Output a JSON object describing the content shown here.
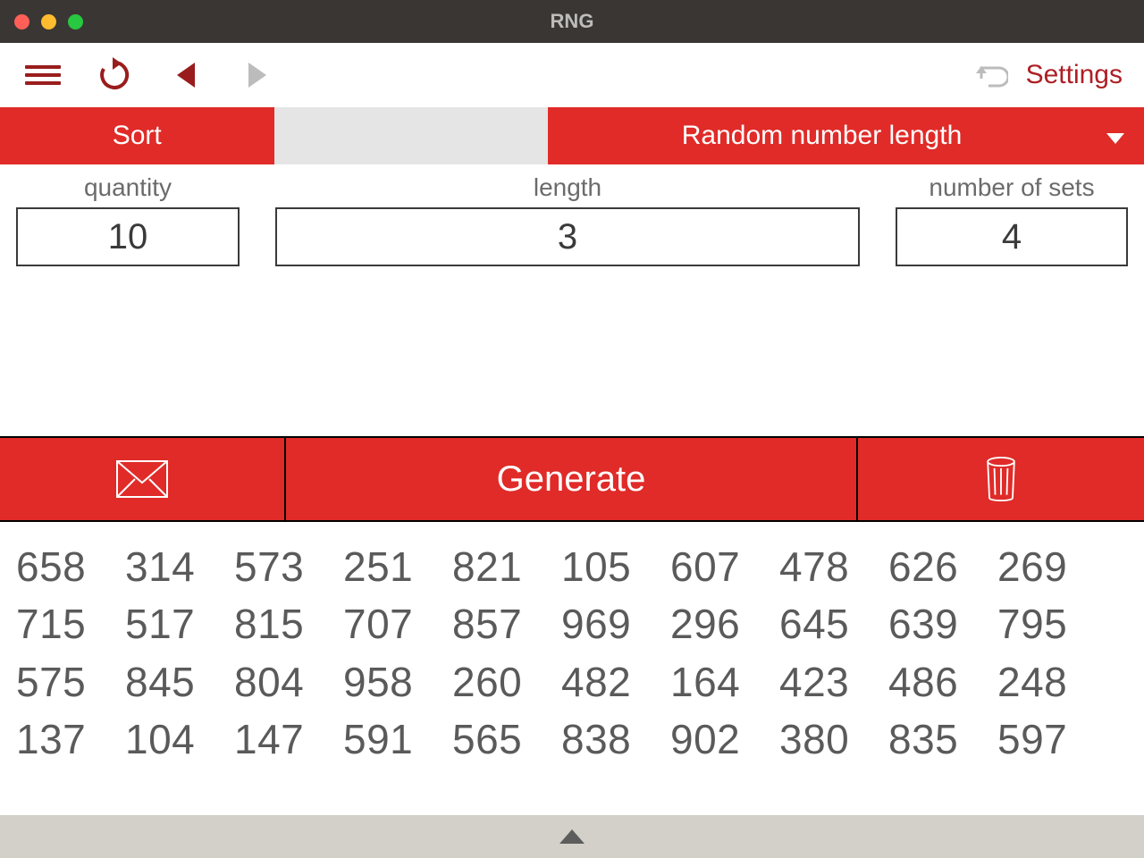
{
  "window": {
    "title": "RNG"
  },
  "toolbar": {
    "settings_label": "Settings"
  },
  "tabs": {
    "sort_label": "Sort",
    "mode_label": "Random number length"
  },
  "params": {
    "quantity": {
      "label": "quantity",
      "value": "10"
    },
    "length": {
      "label": "length",
      "value": "3"
    },
    "sets": {
      "label": "number of sets",
      "value": "4"
    }
  },
  "actions": {
    "generate_label": "Generate"
  },
  "results": {
    "rows": [
      [
        "658",
        "314",
        "573",
        "251",
        "821",
        "105",
        "607",
        "478",
        "626",
        "269"
      ],
      [
        "715",
        "517",
        "815",
        "707",
        "857",
        "969",
        "296",
        "645",
        "639",
        "795"
      ],
      [
        "575",
        "845",
        "804",
        "958",
        "260",
        "482",
        "164",
        "423",
        "486",
        "248"
      ],
      [
        "137",
        "104",
        "147",
        "591",
        "565",
        "838",
        "902",
        "380",
        "835",
        "597"
      ]
    ]
  },
  "colors": {
    "accent": "#e02b28",
    "accent_dark": "#9a1d1d",
    "titlebar": "#3a3634",
    "text_muted": "#6b6b6b",
    "results_text": "#5a5a5a",
    "drawer_bg": "#d3d0c9"
  }
}
